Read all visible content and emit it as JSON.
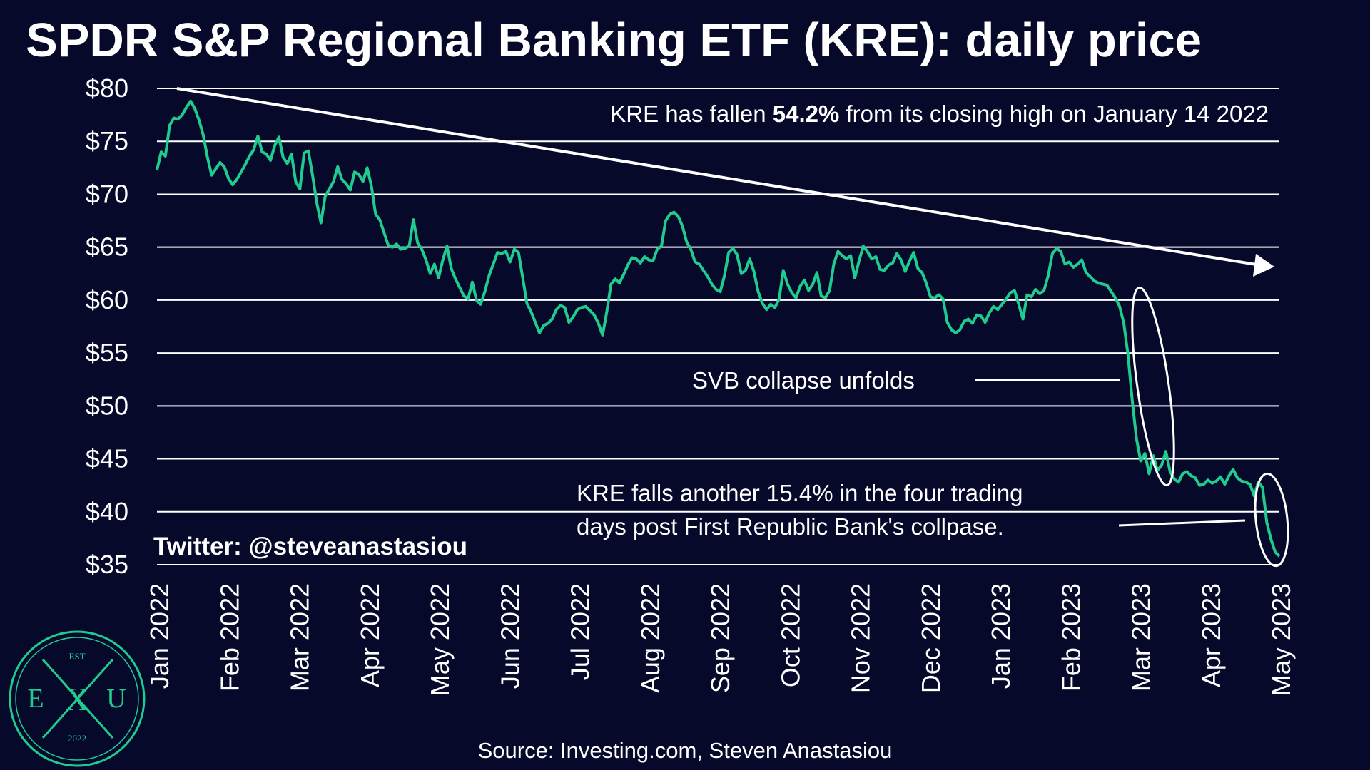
{
  "chart_data": {
    "type": "line",
    "title": "SPDR S&P Regional Banking ETF (KRE): daily price",
    "xlabel": "",
    "ylabel": "",
    "ylim": [
      35,
      80
    ],
    "y_ticks": [
      80,
      75,
      70,
      65,
      60,
      55,
      50,
      45,
      40,
      35
    ],
    "y_tick_labels": [
      "$80",
      "$75",
      "$70",
      "$65",
      "$60",
      "$55",
      "$50",
      "$45",
      "$40",
      "$35"
    ],
    "x_tick_labels": [
      "Jan 2022",
      "Feb 2022",
      "Mar 2022",
      "Apr 2022",
      "May 2022",
      "Jun 2022",
      "Jul 2022",
      "Aug 2022",
      "Sep 2022",
      "Oct 2022",
      "Nov 2022",
      "Dec 2022",
      "Jan 2023",
      "Feb 2023",
      "Mar 2023",
      "Apr 2023",
      "May 2023"
    ],
    "grid": "horizontal",
    "line_color": "#1fcb8f",
    "series": [
      {
        "values": [
          72.3,
          74.0,
          73.6,
          76.5,
          77.2,
          77.1,
          77.5,
          78.2,
          78.8,
          78.1,
          77.0,
          75.6,
          73.5,
          71.8,
          72.4,
          73.0,
          72.6,
          71.5,
          70.9,
          71.4,
          72.1,
          72.8,
          73.6,
          74.2,
          75.5,
          74.0,
          73.8,
          73.2,
          74.6,
          75.4,
          73.5,
          72.9,
          73.8,
          71.2,
          70.5,
          73.9,
          74.1,
          71.8,
          69.2,
          67.3,
          69.8,
          70.5,
          71.2,
          72.6,
          71.4,
          71.0,
          70.4,
          72.1,
          71.9,
          71.2,
          72.5,
          70.8,
          68.1,
          67.6,
          66.4,
          65.2,
          65.0,
          65.3,
          64.8,
          64.9,
          65.1,
          67.6,
          65.4,
          64.8,
          63.8,
          62.5,
          63.4,
          62.1,
          63.8,
          65.1,
          63.0,
          62.0,
          61.2,
          60.4,
          60.1,
          61.7,
          60.0,
          59.6,
          60.8,
          62.3,
          63.4,
          64.5,
          64.4,
          64.6,
          63.6,
          64.8,
          64.5,
          62.1,
          59.7,
          58.9,
          57.9,
          56.9,
          57.6,
          57.8,
          58.2,
          59.1,
          59.5,
          59.3,
          57.9,
          58.4,
          59.1,
          59.3,
          59.4,
          59.0,
          58.6,
          57.8,
          56.7,
          58.9,
          61.5,
          62.0,
          61.6,
          62.4,
          63.3,
          64.0,
          63.9,
          63.5,
          64.1,
          63.8,
          63.7,
          64.8,
          65.1,
          67.5,
          68.1,
          68.3,
          67.9,
          67.0,
          65.5,
          64.8,
          63.6,
          63.4,
          62.8,
          62.2,
          61.5,
          61.0,
          60.8,
          62.3,
          64.5,
          64.9,
          64.3,
          62.5,
          62.8,
          63.9,
          62.7,
          60.8,
          59.7,
          59.1,
          59.6,
          59.3,
          60.1,
          62.8,
          61.5,
          60.7,
          60.2,
          61.3,
          61.9,
          60.9,
          61.5,
          62.6,
          60.4,
          60.2,
          60.9,
          63.4,
          64.6,
          64.2,
          63.9,
          64.2,
          62.1,
          63.7,
          65.1,
          64.6,
          63.9,
          64.1,
          62.9,
          62.8,
          63.3,
          63.5,
          64.4,
          63.8,
          62.7,
          63.7,
          64.5,
          63.0,
          62.6,
          61.6,
          60.3,
          60.2,
          60.5,
          60.1,
          57.9,
          57.2,
          56.9,
          57.2,
          58.0,
          58.2,
          57.8,
          58.6,
          58.5,
          57.9,
          58.8,
          59.4,
          59.1,
          59.6,
          60.1,
          60.7,
          60.9,
          59.6,
          58.2,
          60.5,
          60.3,
          61.0,
          60.6,
          60.9,
          62.3,
          64.4,
          64.9,
          64.6,
          63.4,
          63.6,
          63.1,
          63.4,
          63.8,
          62.6,
          62.2,
          61.8,
          61.6,
          61.5,
          61.4,
          60.8,
          60.2,
          59.4,
          57.8,
          54.8,
          50.5,
          46.9,
          44.8,
          45.5,
          43.6,
          45.3,
          43.9,
          44.4,
          45.7,
          43.8,
          43.1,
          42.8,
          43.6,
          43.8,
          43.4,
          43.2,
          42.5,
          42.6,
          43.0,
          42.7,
          42.9,
          43.3,
          42.6,
          43.4,
          44.0,
          43.2,
          42.9,
          42.8,
          42.6,
          41.5,
          42.8,
          42.3,
          39.0,
          37.4,
          36.2,
          35.8
        ]
      }
    ],
    "annotations": {
      "trend_note_prefix": "KRE has fallen ",
      "trend_note_bold": "54.2%",
      "trend_note_suffix": " from its closing high on January 14 2022",
      "svb_label": "SVB collapse unfolds",
      "frb_line1": "KRE falls another 15.4% in the four trading",
      "frb_line2": "days post First Republic Bank's collpase.",
      "twitter": "Twitter: @steveanastasiou"
    },
    "source": "Source: Investing.com, Steven Anastasiou"
  },
  "logo": {
    "top_text": "EST",
    "left_letter": "E",
    "center_letter": "X",
    "right_letter": "U",
    "year": "2022",
    "color": "#1fcb8f"
  }
}
